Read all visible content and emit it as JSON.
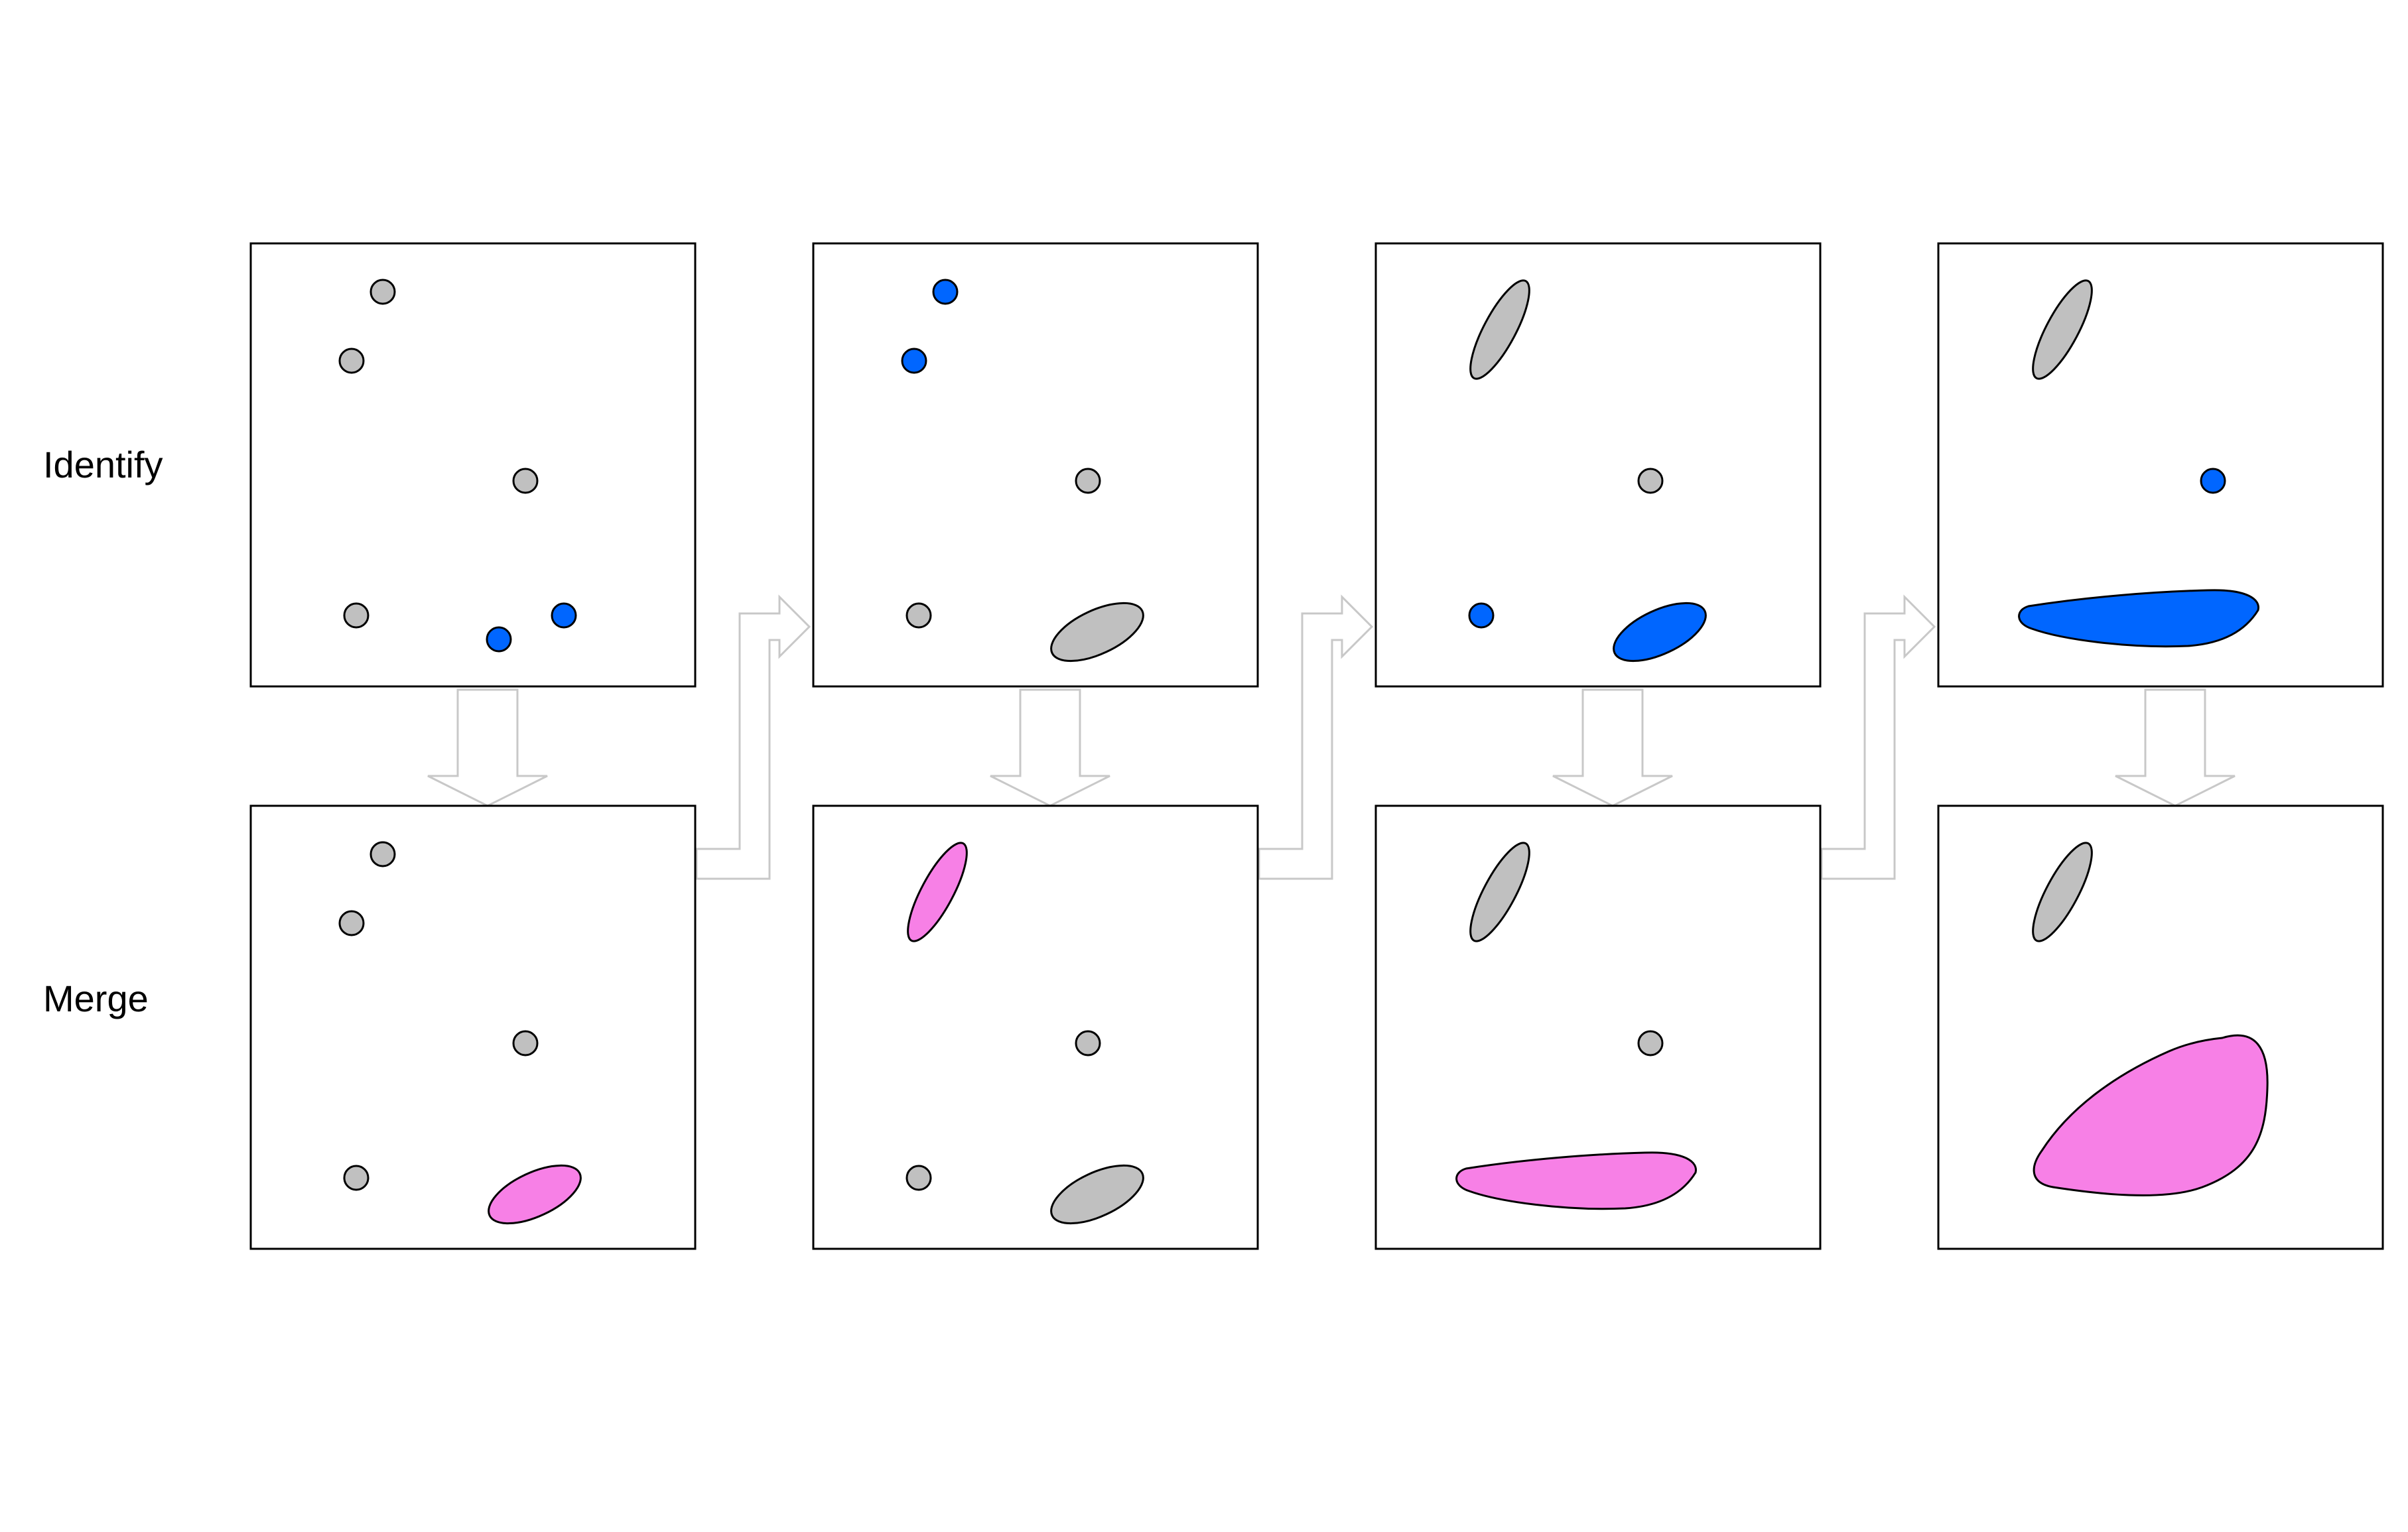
{
  "rows": [
    {
      "label": "Identify"
    },
    {
      "label": "Merge"
    }
  ],
  "colors": {
    "unselected": "#c0c0c0",
    "identified": "#0066ff",
    "merged": "#f780e6",
    "outline": "#000000",
    "arrow_stroke": "#c8c8c8",
    "frame": "#000000"
  },
  "steps": [
    {
      "identify": [
        "gray",
        "gray",
        "gray",
        "gray",
        "blue",
        "blue"
      ],
      "merge": [
        "gray",
        "gray",
        "gray",
        "gray",
        "pink"
      ]
    },
    {
      "identify": [
        "blue",
        "blue",
        "gray",
        "gray",
        "gray"
      ],
      "merge": [
        "pink",
        "gray",
        "gray",
        "gray"
      ]
    },
    {
      "identify": [
        "gray",
        "gray",
        "blue",
        "blue"
      ],
      "merge": [
        "gray",
        "gray",
        "pink"
      ]
    },
    {
      "identify": [
        "gray",
        "blue",
        "blue"
      ],
      "merge": [
        "gray",
        "pink"
      ]
    }
  ]
}
